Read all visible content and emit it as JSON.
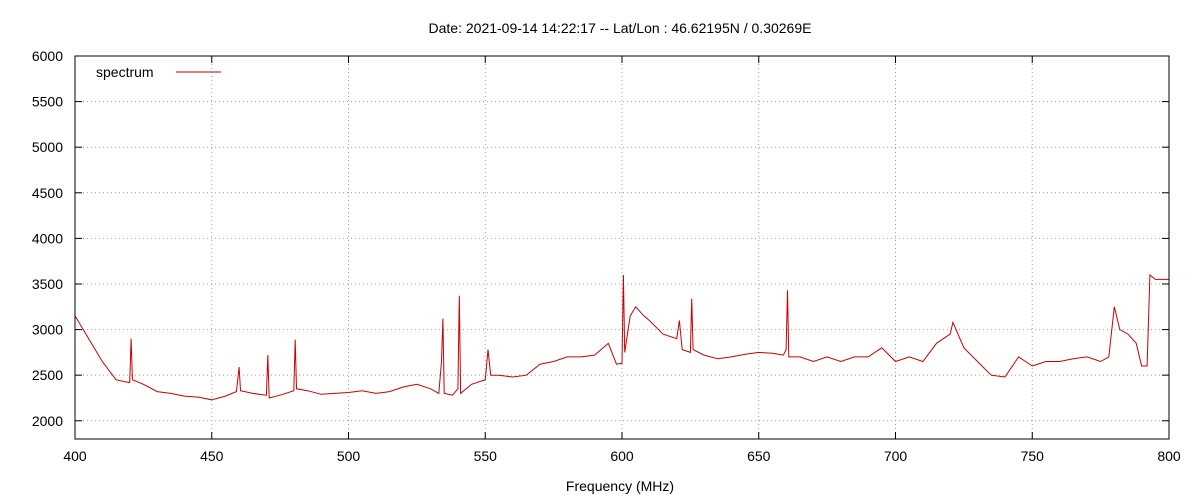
{
  "chart_data": {
    "type": "line",
    "title": "Date: 2021-09-14 14:22:17  --  Lat/Lon : 46.62195N / 0.30269E",
    "xlabel": "Frequency (MHz)",
    "ylabel": "",
    "xlim": [
      400,
      800
    ],
    "ylim": [
      1800,
      6000
    ],
    "xticks": [
      400,
      450,
      500,
      550,
      600,
      650,
      700,
      750,
      800
    ],
    "yticks": [
      2000,
      2500,
      3000,
      3500,
      4000,
      4500,
      5000,
      5500,
      6000
    ],
    "grid": true,
    "legend_position": "top-left",
    "series": [
      {
        "name": "spectrum",
        "color": "#cc0000",
        "x": [
          400,
          405,
          410,
          415,
          418,
          420,
          420.5,
          421,
          425,
          430,
          435,
          440,
          445,
          450,
          455,
          459,
          460,
          460.5,
          465,
          470,
          470.5,
          471,
          475,
          480,
          480.5,
          481,
          485,
          490,
          495,
          500,
          505,
          510,
          515,
          520,
          525,
          530,
          533,
          534,
          534.5,
          535,
          538,
          540,
          540.5,
          541,
          545,
          550,
          551,
          552,
          555,
          560,
          565,
          570,
          575,
          580,
          585,
          590,
          595,
          598,
          600,
          600.5,
          601,
          603,
          605,
          608,
          610,
          615,
          620,
          621,
          622,
          625,
          625.5,
          626,
          630,
          635,
          640,
          645,
          650,
          655,
          659,
          660,
          660.5,
          661,
          665,
          670,
          675,
          680,
          685,
          690,
          695,
          700,
          705,
          710,
          715,
          720,
          721,
          725,
          730,
          735,
          740,
          745,
          750,
          755,
          760,
          765,
          770,
          775,
          778,
          780,
          782,
          785,
          788,
          790,
          792,
          793,
          795,
          800
        ],
        "values": [
          3150,
          2900,
          2650,
          2450,
          2430,
          2420,
          2900,
          2450,
          2400,
          2320,
          2300,
          2270,
          2260,
          2230,
          2270,
          2320,
          2590,
          2330,
          2300,
          2280,
          2720,
          2250,
          2280,
          2330,
          2890,
          2350,
          2330,
          2290,
          2300,
          2310,
          2330,
          2300,
          2320,
          2370,
          2400,
          2350,
          2300,
          2650,
          3120,
          2300,
          2280,
          2350,
          3370,
          2300,
          2400,
          2450,
          2780,
          2500,
          2500,
          2480,
          2500,
          2620,
          2650,
          2700,
          2700,
          2720,
          2850,
          2620,
          2630,
          3600,
          2750,
          3150,
          3250,
          3150,
          3100,
          2950,
          2900,
          3100,
          2780,
          2750,
          3340,
          2780,
          2720,
          2680,
          2700,
          2730,
          2750,
          2740,
          2720,
          2780,
          3430,
          2700,
          2700,
          2650,
          2700,
          2650,
          2700,
          2700,
          2800,
          2650,
          2700,
          2650,
          2850,
          2950,
          3080,
          2800,
          2650,
          2500,
          2480,
          2700,
          2600,
          2650,
          2650,
          2680,
          2700,
          2650,
          2700,
          3250,
          3000,
          2950,
          2850,
          2600,
          2600,
          3600,
          3550,
          3550
        ]
      }
    ]
  }
}
